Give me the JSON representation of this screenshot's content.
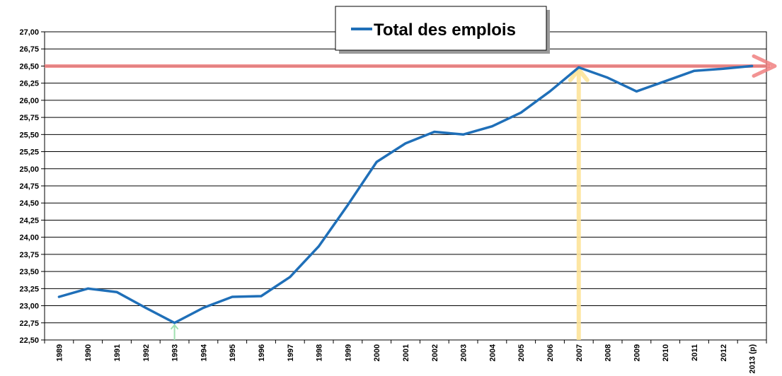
{
  "chart_data": {
    "type": "line",
    "title": "",
    "xlabel": "",
    "ylabel": "",
    "categories": [
      "1989",
      "1990",
      "1991",
      "1992",
      "1993",
      "1994",
      "1995",
      "1996",
      "1997",
      "1998",
      "1999",
      "2000",
      "2001",
      "2002",
      "2003",
      "2004",
      "2005",
      "2006",
      "2007",
      "2008",
      "2009",
      "2010",
      "2011",
      "2012",
      "2013 (p)"
    ],
    "series": [
      {
        "name": "Total des emplois",
        "color": "#1f6fb8",
        "values": [
          23.13,
          23.25,
          23.2,
          22.97,
          22.75,
          22.97,
          23.13,
          23.14,
          23.42,
          23.87,
          24.47,
          25.1,
          25.37,
          25.54,
          25.5,
          25.62,
          25.82,
          26.13,
          26.48,
          26.33,
          26.13,
          26.28,
          26.43,
          26.46,
          26.5
        ]
      }
    ],
    "ylim": [
      22.5,
      27.0
    ],
    "y_ticks": [
      "22,50",
      "22,75",
      "23,00",
      "23,25",
      "23,50",
      "23,75",
      "24,00",
      "24,25",
      "24,50",
      "24,75",
      "25,00",
      "25,25",
      "25,50",
      "25,75",
      "26,00",
      "26,25",
      "26,50",
      "26,75",
      "27,00"
    ],
    "grid": "horizontal",
    "legend_position": "top-center",
    "annotations": {
      "horizontal_line": {
        "y": 26.5,
        "color": "#f08080"
      },
      "vertical_arrow": {
        "x": "2007",
        "color": "#fde49a"
      },
      "min_arrow": {
        "x": "1993",
        "color": "#9fe0b0"
      }
    }
  }
}
